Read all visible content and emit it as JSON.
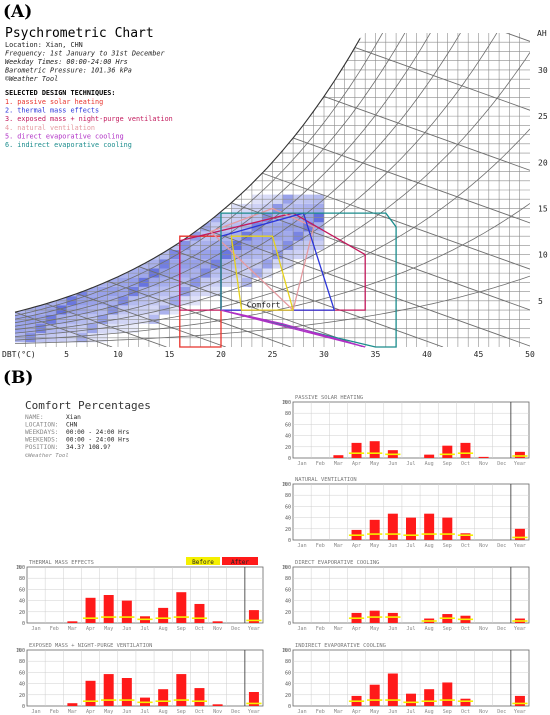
{
  "panel_a_label": "(A)",
  "panel_b_label": "(B)",
  "psychro": {
    "title": "Psychrometric Chart",
    "info": [
      "Location: Xian, CHN",
      "Frequency: 1st January to 31st December",
      "Weekday Times: 00:00-24:00 Hrs",
      "Barometric Pressure: 101.36 kPa",
      "©Weather Tool"
    ],
    "techniques_heading": "SELECTED DESIGN TECHNIQUES:",
    "techniques": [
      {
        "label": "1. passive solar heating",
        "color": "#e8322b"
      },
      {
        "label": "2. thermal mass effects",
        "color": "#2b35d9"
      },
      {
        "label": "3. exposed mass + night-purge ventilation",
        "color": "#c2185b"
      },
      {
        "label": "4. natural ventilation",
        "color": "#e59aa0"
      },
      {
        "label": "5. direct evaporative cooling",
        "color": "#b02fc6"
      },
      {
        "label": "6. indirect evaporative cooling",
        "color": "#1a8c8c"
      }
    ],
    "comfort_label": "Comfort",
    "dbt_label": "DBT(°C)",
    "ah_label": "AH",
    "x_ticks": [
      5,
      10,
      15,
      20,
      25,
      30,
      35,
      40,
      45,
      50
    ],
    "y_ticks": [
      5,
      10,
      15,
      20,
      25,
      30
    ],
    "x_range": [
      0,
      50
    ],
    "y_range": [
      0,
      34
    ]
  },
  "comfort": {
    "title": "Comfort Percentages",
    "info": [
      {
        "key": "NAME:",
        "value": "Xian"
      },
      {
        "key": "LOCATION:",
        "value": "CHN"
      },
      {
        "key": "WEEKDAYS:",
        "value": "00:00 - 24:00 Hrs"
      },
      {
        "key": "WEEKENDS:",
        "value": "00:00 - 24:00 Hrs"
      },
      {
        "key": "POSITION:",
        "value": "34.3? 108.9?"
      }
    ],
    "copyright": "©Weather Tool",
    "legend": {
      "before": "Before",
      "after": "After",
      "before_color": "#f5f000",
      "after_color": "#ff1a1a"
    }
  },
  "chart_data": [
    {
      "type": "bar",
      "title": "PASSIVE SOLAR HEATING",
      "ylabel": "%",
      "ylim": [
        0,
        100
      ],
      "categories": [
        "Jan",
        "Feb",
        "Mar",
        "Apr",
        "May",
        "Jun",
        "Jul",
        "Aug",
        "Sep",
        "Oct",
        "Nov",
        "Dec",
        "Year"
      ],
      "series": [
        {
          "name": "Before",
          "values": [
            0,
            0,
            0,
            10,
            10,
            8,
            0,
            0,
            8,
            10,
            0,
            0,
            5
          ]
        },
        {
          "name": "After",
          "values": [
            0,
            0,
            5,
            27,
            30,
            14,
            0,
            6,
            22,
            27,
            2,
            0,
            11
          ]
        }
      ]
    },
    {
      "type": "bar",
      "title": "NATURAL VENTILATION",
      "ylabel": "%",
      "ylim": [
        0,
        100
      ],
      "categories": [
        "Jan",
        "Feb",
        "Mar",
        "Apr",
        "May",
        "Jun",
        "Jul",
        "Aug",
        "Sep",
        "Oct",
        "Nov",
        "Dec",
        "Year"
      ],
      "series": [
        {
          "name": "Before",
          "values": [
            0,
            0,
            0,
            10,
            12,
            12,
            10,
            12,
            12,
            10,
            0,
            0,
            6
          ]
        },
        {
          "name": "After",
          "values": [
            0,
            0,
            0,
            18,
            36,
            47,
            40,
            47,
            40,
            12,
            0,
            0,
            20
          ]
        }
      ]
    },
    {
      "type": "bar",
      "title": "THERMAL MASS EFFECTS",
      "ylabel": "%",
      "ylim": [
        0,
        100
      ],
      "categories": [
        "Jan",
        "Feb",
        "Mar",
        "Apr",
        "May",
        "Jun",
        "Jul",
        "Aug",
        "Sep",
        "Oct",
        "Nov",
        "Dec",
        "Year"
      ],
      "series": [
        {
          "name": "Before",
          "values": [
            0,
            0,
            0,
            10,
            12,
            12,
            8,
            10,
            12,
            10,
            0,
            0,
            6
          ]
        },
        {
          "name": "After",
          "values": [
            0,
            0,
            3,
            45,
            50,
            40,
            12,
            27,
            55,
            34,
            3,
            0,
            23
          ]
        }
      ]
    },
    {
      "type": "bar",
      "title": "DIRECT EVAPORATIVE COOLING",
      "ylabel": "%",
      "ylim": [
        0,
        100
      ],
      "categories": [
        "Jan",
        "Feb",
        "Mar",
        "Apr",
        "May",
        "Jun",
        "Jul",
        "Aug",
        "Sep",
        "Oct",
        "Nov",
        "Dec",
        "Year"
      ],
      "series": [
        {
          "name": "Before",
          "values": [
            0,
            0,
            0,
            10,
            12,
            12,
            0,
            5,
            10,
            8,
            0,
            0,
            5
          ]
        },
        {
          "name": "After",
          "values": [
            0,
            0,
            0,
            18,
            22,
            18,
            0,
            8,
            16,
            13,
            0,
            0,
            8
          ]
        }
      ]
    },
    {
      "type": "bar",
      "title": "EXPOSED MASS + NIGHT-PURGE VENTILATION",
      "ylabel": "%",
      "ylim": [
        0,
        100
      ],
      "categories": [
        "Jan",
        "Feb",
        "Mar",
        "Apr",
        "May",
        "Jun",
        "Jul",
        "Aug",
        "Sep",
        "Oct",
        "Nov",
        "Dec",
        "Year"
      ],
      "series": [
        {
          "name": "Before",
          "values": [
            0,
            0,
            0,
            10,
            12,
            12,
            8,
            10,
            12,
            10,
            0,
            0,
            6
          ]
        },
        {
          "name": "After",
          "values": [
            0,
            0,
            5,
            45,
            57,
            50,
            15,
            30,
            57,
            32,
            3,
            0,
            25
          ]
        }
      ]
    },
    {
      "type": "bar",
      "title": "INDIRECT EVAPORATIVE COOLING",
      "ylabel": "%",
      "ylim": [
        0,
        100
      ],
      "categories": [
        "Jan",
        "Feb",
        "Mar",
        "Apr",
        "May",
        "Jun",
        "Jul",
        "Aug",
        "Sep",
        "Oct",
        "Nov",
        "Dec",
        "Year"
      ],
      "series": [
        {
          "name": "Before",
          "values": [
            0,
            0,
            0,
            10,
            12,
            12,
            8,
            10,
            12,
            10,
            0,
            0,
            6
          ]
        },
        {
          "name": "After",
          "values": [
            0,
            0,
            0,
            18,
            38,
            58,
            22,
            30,
            42,
            13,
            0,
            0,
            18
          ]
        }
      ]
    }
  ]
}
